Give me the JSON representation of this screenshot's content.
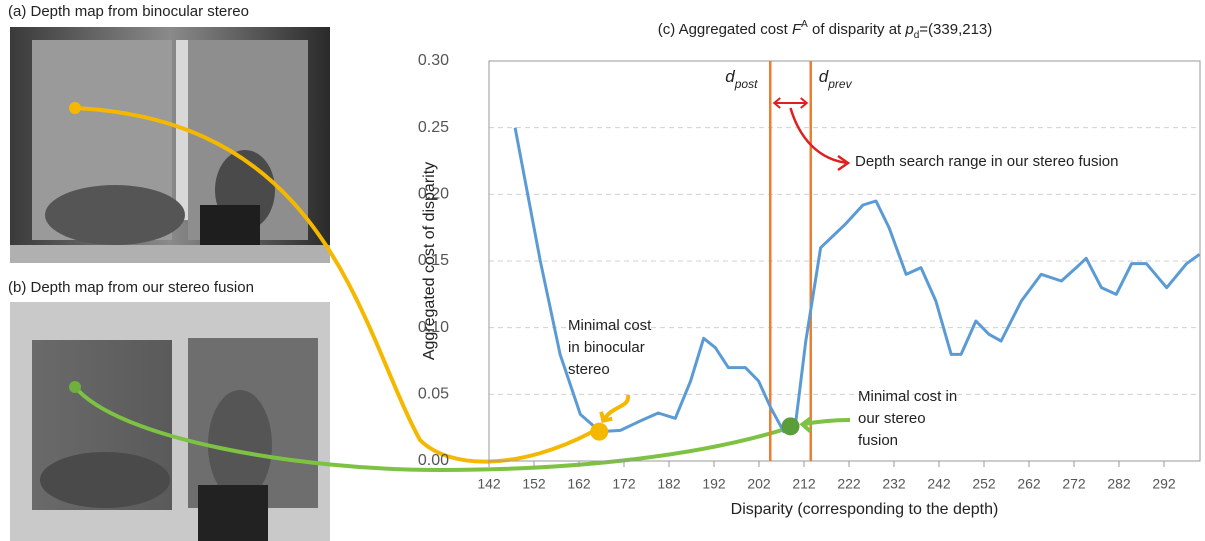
{
  "panels": [
    "(a) Depth map from binocular stereo",
    "(b) Depth map from our stereo fusion"
  ],
  "chart_data": {
    "type": "line",
    "title": [
      "(c) Aggregated cost ",
      "F",
      "A",
      " of disparity at ",
      "p",
      "d",
      "=(339,213)"
    ],
    "x_label": "Disparity (corresponding to the depth)",
    "y_label": "Aggregated cost of disparity",
    "xlim": [
      142,
      300
    ],
    "xticks": [
      142,
      152,
      162,
      172,
      182,
      192,
      202,
      212,
      222,
      232,
      242,
      252,
      262,
      272,
      282,
      292
    ],
    "ylim": [
      0,
      0.3
    ],
    "yticks": [
      {
        "value": 0,
        "label": "0.00"
      },
      {
        "value": 0.05,
        "label": "0.05"
      },
      {
        "value": 0.1,
        "label": "0.10"
      },
      {
        "value": 0.15,
        "label": "0.15"
      },
      {
        "value": 0.2,
        "label": "0.20"
      },
      {
        "value": 0.25,
        "label": "0.25"
      },
      {
        "value": 0.3,
        "label": "0.30"
      }
    ],
    "grid": true,
    "series": [
      {
        "color": "#5b9bd5",
        "x": [
          147.8,
          153.4,
          157.8,
          162.3,
          166.7,
          171.2,
          175.6,
          179.6,
          183.4,
          186.8,
          189.7,
          192.3,
          195.2,
          199,
          201.9,
          204.6,
          207.5,
          210.2,
          212.4,
          215.7,
          221.3,
          225.1,
          228,
          230.9,
          234.7,
          238,
          241.3,
          244.7,
          246.9,
          250.2,
          253.1,
          255.8,
          260.3,
          264.7,
          269.2,
          272.5,
          274.7,
          278.1,
          281.4,
          284.8,
          288.1,
          292.6,
          297,
          299.9
        ],
        "values": [
          0.25,
          0.15,
          0.08,
          0.035,
          0.022,
          0.023,
          0.03,
          0.036,
          0.032,
          0.06,
          0.092,
          0.085,
          0.07,
          0.07,
          0.06,
          0.04,
          0.022,
          0.03,
          0.09,
          0.16,
          0.178,
          0.192,
          0.195,
          0.175,
          0.14,
          0.145,
          0.12,
          0.08,
          0.08,
          0.105,
          0.095,
          0.09,
          0.12,
          0.14,
          0.135,
          0.145,
          0.152,
          0.13,
          0.125,
          0.148,
          0.148,
          0.13,
          0.148,
          0.155
        ]
      }
    ],
    "range_lines": [
      {
        "x": 204.5,
        "label": [
          "d",
          "post"
        ]
      },
      {
        "x": 213.5,
        "label": [
          "d",
          "prev"
        ]
      }
    ],
    "range_color": "#ed7d31",
    "markers": [
      {
        "x": 166.5,
        "y": 0.022,
        "color": "#f5b800",
        "label": [
          "Minimal cost",
          "in binocular",
          "stereo"
        ]
      },
      {
        "x": 209,
        "y": 0.026,
        "color": "#5a9e3a",
        "label": [
          "Minimal cost in",
          "our stereo",
          "fusion"
        ]
      }
    ],
    "range_note": "Depth search range in our stereo fusion"
  }
}
